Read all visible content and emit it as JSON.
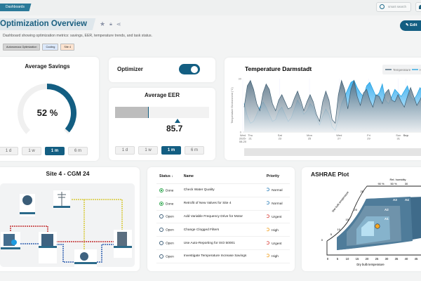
{
  "topbar": {
    "breadcrumb": "Dashboards",
    "search_placeholder": "smart search"
  },
  "header": {
    "title": "Optimization Overview",
    "description": "Dashboard showing optimization metrics: savings, EER, temperature trends, and task status.",
    "tags": [
      {
        "label": "Autonomous Optimization",
        "color": "#d4d4d4"
      },
      {
        "label": "Cooling",
        "color": "#dbe8fb"
      },
      {
        "label": "Site 4",
        "color": "#fde3cf"
      }
    ],
    "edit_label": "Edit"
  },
  "savings": {
    "title": "Average Savings",
    "value_label": "52 %",
    "value": 52,
    "ranges": [
      "1 d",
      "1 w",
      "1 m",
      "6 m"
    ],
    "selected": "1 m",
    "accent": "#135e82"
  },
  "optimizer": {
    "label": "Optimizer",
    "enabled": true
  },
  "eer": {
    "title": "Average EER",
    "value": "85.7",
    "ranges": [
      "1 d",
      "1 w",
      "1 m",
      "6 m"
    ],
    "selected": "1 m"
  },
  "chart_data": {
    "type": "area",
    "title": "Temperature Darmstadt",
    "ylabel": "Temperature Environment (°C)",
    "ylim": [
      0,
      30
    ],
    "yticks": [
      "0",
      "30"
    ],
    "xticks": [
      {
        "label": "Wed",
        "sub": "2025-08-20",
        "day": 0
      },
      {
        "label": "Thu",
        "sub": "21",
        "day": 0.5
      },
      {
        "label": "Sat",
        "sub": "23",
        "day": 2.5
      },
      {
        "label": "Mon",
        "sub": "25",
        "day": 4.5
      },
      {
        "label": "Wed",
        "sub": "27",
        "day": 6.5
      },
      {
        "label": "Fri",
        "sub": "29",
        "day": 8.5
      },
      {
        "label": "Sun",
        "sub": "31",
        "day": 10.5
      },
      {
        "label": "Sep",
        "sub": "",
        "day": 11
      }
    ],
    "xlim_days": [
      0,
      12.5
    ],
    "series": [
      {
        "name": "Temperature",
        "color": "#3d5d72",
        "values": [
          14,
          26,
          29,
          24,
          16,
          12,
          22,
          27,
          24,
          16,
          12,
          18,
          21,
          17,
          13,
          14,
          19,
          23,
          18,
          12,
          17,
          21,
          17,
          10,
          6,
          17,
          23,
          18,
          7,
          5,
          21,
          29,
          24,
          13,
          24,
          29,
          20,
          15,
          22,
          24,
          18,
          14,
          21,
          20,
          16,
          22,
          24,
          18,
          17,
          21,
          17,
          14,
          20,
          25,
          20,
          15,
          18,
          22,
          17,
          19
        ]
      },
      {
        "name": "Humidity",
        "color": "#1ea0e0",
        "values": [
          16,
          9,
          5,
          6,
          10,
          14,
          17,
          14,
          10,
          6,
          7,
          12,
          14,
          10,
          6,
          8,
          13,
          18,
          15,
          10,
          12,
          16,
          14,
          8,
          4,
          9,
          13,
          10,
          3,
          1,
          8,
          16,
          20,
          24,
          28,
          29,
          25,
          22,
          20,
          26,
          28,
          24,
          20,
          22,
          27,
          18,
          16,
          20,
          24,
          22,
          20,
          23,
          26,
          20,
          18,
          21,
          25,
          22,
          20,
          24
        ]
      }
    ],
    "legend": [
      "Temperature",
      "Humidity"
    ]
  },
  "site": {
    "title": "Site 4 - CGM 24"
  },
  "tasks": {
    "columns": [
      "Status",
      "Name",
      "Priority"
    ],
    "rows": [
      {
        "status": "Done",
        "name": "Check Water Quality",
        "priority": "Normal"
      },
      {
        "status": "Done",
        "name": "Retrofit of New Valves for Site 4",
        "priority": "Normal"
      },
      {
        "status": "Open",
        "name": "Add Variable Frequency Drive for Motor",
        "priority": "Urgent"
      },
      {
        "status": "Open",
        "name": "Change Clogged Filters",
        "priority": "High"
      },
      {
        "status": "Open",
        "name": "Use Auto-Reporting for ISO 50001",
        "priority": "Urgent"
      },
      {
        "status": "Open",
        "name": "Investigate Temperature Increase Savings",
        "priority": "High"
      }
    ],
    "priority_colors": {
      "Normal": "#2d7fb8",
      "Urgent": "#d9413a",
      "High": "#f0a020"
    }
  },
  "ashrae": {
    "title": "ASHRAE Plot",
    "rh_label": "Rel. humidity",
    "rh_ticks": [
      "90 %",
      "50 %",
      "30"
    ],
    "wb_label": "Wet bulb temperature",
    "wb_ticks": [
      "0",
      "5",
      "10",
      "15",
      "20",
      "25"
    ],
    "x_label": "Dry bulb temperature",
    "x_ticks": [
      "0",
      "5",
      "10",
      "15",
      "20",
      "25",
      "30",
      "35",
      "40",
      "45"
    ],
    "zones": [
      "A1",
      "A2",
      "A3",
      "A4"
    ],
    "point": {
      "dry_bulb": 26,
      "color": "#f5a623"
    }
  }
}
